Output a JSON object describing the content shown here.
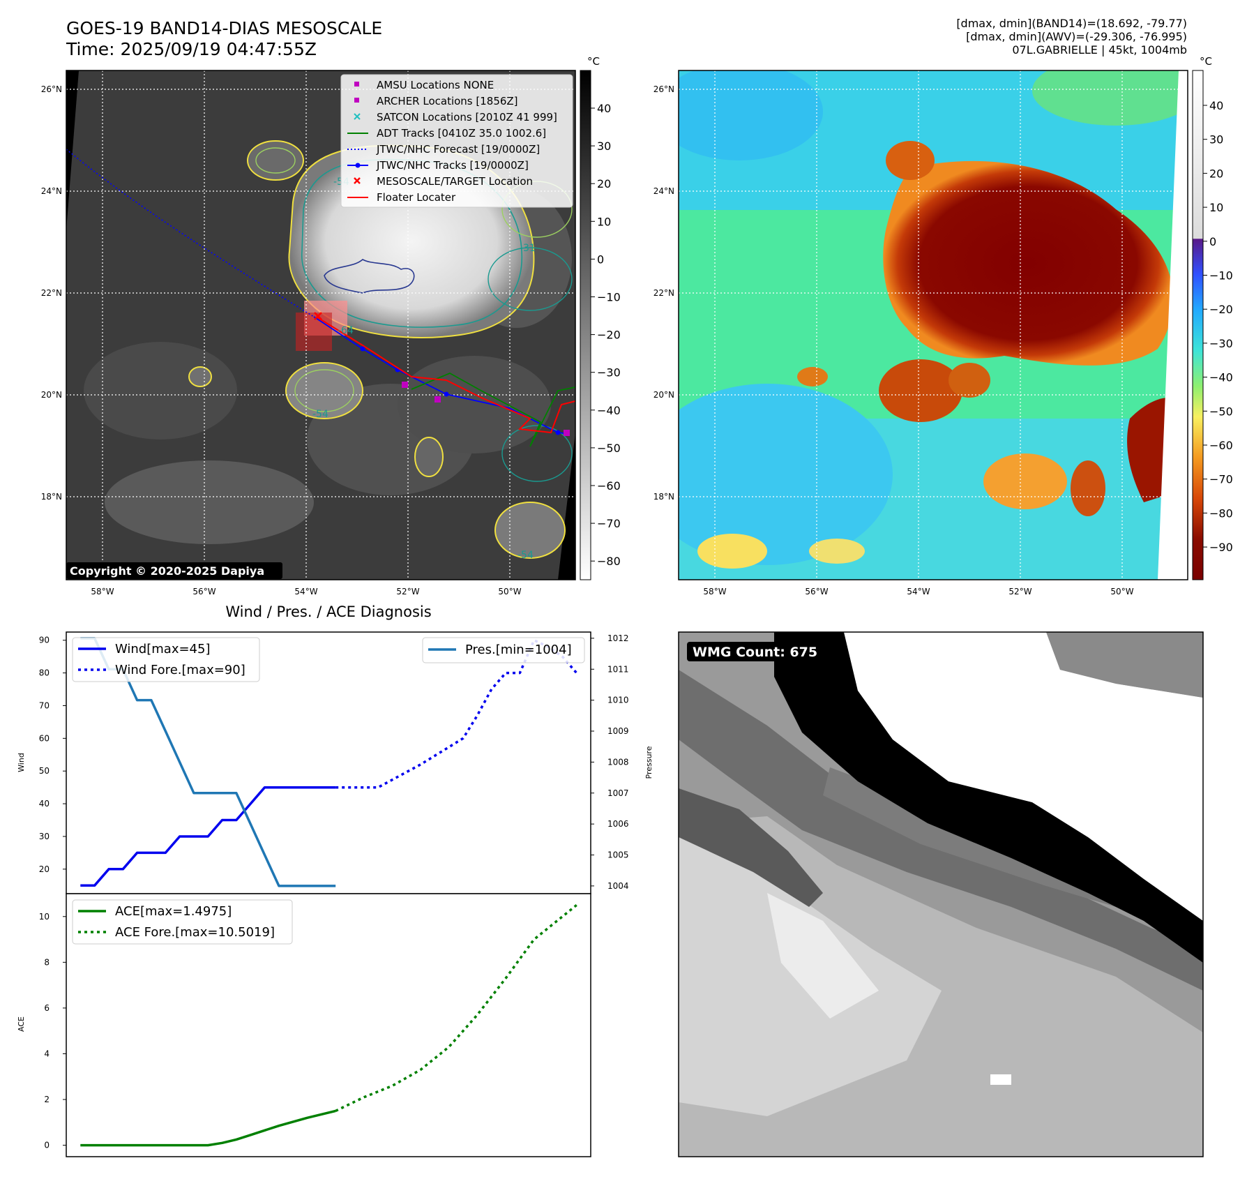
{
  "header": {
    "title_line1": "GOES-19 BAND14-DIAS MESOSCALE",
    "title_line2": "Time: 2025/09/19 04:47:55Z",
    "right_line1": "[dmax, dmin](BAND14)=(18.692, -79.77)",
    "right_line2": "[dmax, dmin](AWV)=(-29.306, -76.995)",
    "right_line3": "07L.GABRIELLE | 45kt, 1004mb"
  },
  "map_axes": {
    "lon_labels": [
      "58°W",
      "56°W",
      "54°W",
      "52°W",
      "50°W"
    ],
    "lat_labels": [
      "26°N",
      "24°N",
      "22°N",
      "20°N",
      "18°N"
    ]
  },
  "ir_panel": {
    "colorbar_unit": "°C",
    "colorbar_ticks": [
      "40",
      "30",
      "20",
      "10",
      "0",
      "−10",
      "−20",
      "−30",
      "−40",
      "−50",
      "−60",
      "−70",
      "−80"
    ],
    "copyright": "Copyright © 2020-2025 Dapiya",
    "contour_labels": [
      "-54",
      "-64",
      "-54",
      "-31",
      "-54"
    ],
    "legend": [
      {
        "label": "AMSU Locations NONE",
        "color": "#c000c0",
        "marker": "square"
      },
      {
        "label": "ARCHER Locations [1856Z]",
        "color": "#c000c0",
        "marker": "square"
      },
      {
        "label": "SATCON Locations [2010Z 41 999]",
        "color": "#20c0c0",
        "marker": "x"
      },
      {
        "label": "ADT Tracks [0410Z 35.0 1002.6]",
        "color": "#008000",
        "marker": "line"
      },
      {
        "label": "JTWC/NHC Forecast [19/0000Z]",
        "color": "#0000ff",
        "marker": "dotted"
      },
      {
        "label": "JTWC/NHC Tracks [19/0000Z]",
        "color": "#0000ff",
        "marker": "line-dot"
      },
      {
        "label": "MESOSCALE/TARGET Location",
        "color": "#ff0000",
        "marker": "x"
      },
      {
        "label": "Floater Locater",
        "color": "#ff0000",
        "marker": "line"
      }
    ]
  },
  "awv_panel": {
    "colorbar_unit": "°C",
    "colorbar_ticks": [
      "40",
      "30",
      "20",
      "10",
      "0",
      "−10",
      "−20",
      "−30",
      "−40",
      "−50",
      "−60",
      "−70",
      "−80",
      "−90"
    ]
  },
  "wmg_panel": {
    "label": "WMG Count: 675"
  },
  "chart_data": [
    {
      "type": "line",
      "title": "Wind / Pres. / ACE Diagnosis",
      "ylabel": "Wind",
      "y2label": "Pressure",
      "ylim": [
        12.5,
        92.5
      ],
      "y2lim": [
        1003.75,
        1012.2
      ],
      "xlim": [
        -1,
        36
      ],
      "yticks": [
        20,
        30,
        40,
        50,
        60,
        70,
        80,
        90
      ],
      "y2ticks": [
        1004,
        1005,
        1006,
        1007,
        1008,
        1009,
        1010,
        1011,
        1012
      ],
      "series": [
        {
          "name": "Wind[max=45]",
          "axis": "left",
          "color": "#0000ee",
          "style": "solid",
          "x": [
            0,
            1,
            2,
            3,
            4,
            5,
            6,
            7,
            8,
            9,
            10,
            11,
            12,
            13,
            14,
            15,
            16,
            17,
            18
          ],
          "values": [
            15,
            15,
            20,
            20,
            25,
            25,
            25,
            30,
            30,
            30,
            35,
            35,
            40,
            45,
            45,
            45,
            45,
            45,
            45
          ]
        },
        {
          "name": "Wind Fore.[max=90]",
          "axis": "left",
          "color": "#0000ee",
          "style": "dotted",
          "x": [
            18,
            21,
            24,
            27,
            28,
            29,
            30,
            31,
            32,
            33,
            34,
            35
          ],
          "values": [
            45,
            45,
            52,
            60,
            67,
            75,
            80,
            80,
            90,
            88,
            85,
            80
          ]
        },
        {
          "name": "Pres.[min=1004]",
          "axis": "right",
          "color": "#1f77b4",
          "style": "solid",
          "x": [
            0,
            1,
            2,
            3,
            4,
            5,
            6,
            7,
            8,
            9,
            10,
            11,
            12,
            13,
            14,
            15,
            16,
            17,
            18
          ],
          "values": [
            1012,
            1012,
            1011,
            1011,
            1010,
            1010,
            1009,
            1008,
            1007,
            1007,
            1007,
            1007,
            1006,
            1005,
            1004,
            1004,
            1004,
            1004,
            1004
          ]
        }
      ]
    },
    {
      "type": "line",
      "ylabel": "ACE",
      "ylim": [
        -0.5,
        11
      ],
      "xlim": [
        -1,
        36
      ],
      "yticks": [
        0,
        2,
        4,
        6,
        8,
        10
      ],
      "series": [
        {
          "name": "ACE[max=1.4975]",
          "color": "#008000",
          "style": "solid",
          "x": [
            0,
            3,
            6,
            9,
            10,
            11,
            12,
            14,
            16,
            18
          ],
          "values": [
            0,
            0,
            0,
            0,
            0.1,
            0.25,
            0.45,
            0.85,
            1.2,
            1.5
          ]
        },
        {
          "name": "ACE Fore.[max=10.5019]",
          "color": "#008000",
          "style": "dotted",
          "x": [
            18,
            20,
            22,
            24,
            26,
            28,
            30,
            32,
            34,
            35
          ],
          "values": [
            1.5,
            2.1,
            2.6,
            3.3,
            4.3,
            5.7,
            7.3,
            9.0,
            10.0,
            10.5
          ]
        }
      ]
    }
  ]
}
